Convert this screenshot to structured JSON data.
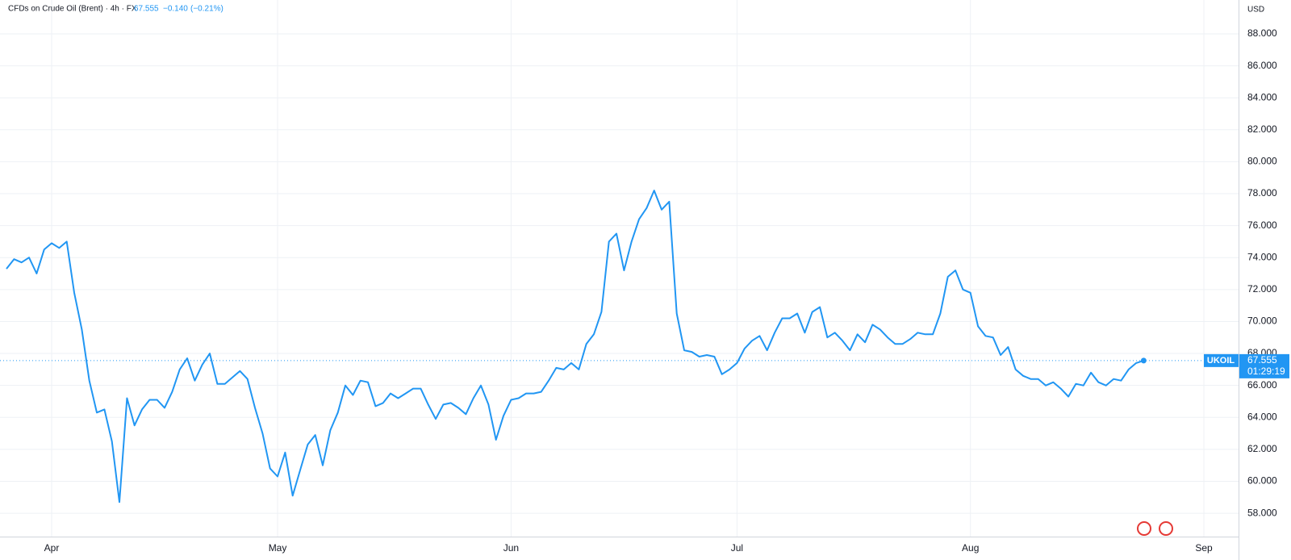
{
  "chart_data": {
    "type": "line",
    "title": "CFDs on Crude Oil (Brent) · 4h · FX",
    "quote": "67.555",
    "change": "−0.140",
    "change_pct": "(−0.21%)",
    "currency": "USD",
    "symbol": "UKOIL",
    "last_price_label": "67.555",
    "countdown": "01:29:19",
    "color": "#2196f3",
    "grid": true,
    "xlim": [
      -6.86,
      157.6
    ],
    "xticks": [
      {
        "value": 0,
        "label": "Apr"
      },
      {
        "value": 30,
        "label": "May"
      },
      {
        "value": 61,
        "label": "Jun"
      },
      {
        "value": 91,
        "label": "Jul"
      },
      {
        "value": 122,
        "label": "Aug"
      },
      {
        "value": 153,
        "label": "Sep"
      }
    ],
    "ylim": [
      56.54,
      90.12
    ],
    "yticks": [
      {
        "value": 58,
        "label": "58.000"
      },
      {
        "value": 60,
        "label": "60.000"
      },
      {
        "value": 62,
        "label": "62.000"
      },
      {
        "value": 64,
        "label": "64.000"
      },
      {
        "value": 66,
        "label": "66.000"
      },
      {
        "value": 68,
        "label": "68.000"
      },
      {
        "value": 70,
        "label": "70.000"
      },
      {
        "value": 72,
        "label": "72.000"
      },
      {
        "value": 74,
        "label": "74.000"
      },
      {
        "value": 76,
        "label": "76.000"
      },
      {
        "value": 78,
        "label": "78.000"
      },
      {
        "value": 80,
        "label": "80.000"
      },
      {
        "value": 82,
        "label": "82.000"
      },
      {
        "value": 84,
        "label": "84.000"
      },
      {
        "value": 86,
        "label": "86.000"
      },
      {
        "value": 88,
        "label": "88.000"
      }
    ],
    "x": [
      -6,
      -5,
      -4,
      -3,
      -2,
      -1,
      0,
      1,
      2,
      3,
      4,
      5,
      6,
      7,
      8,
      9,
      10,
      11,
      12,
      13,
      14,
      15,
      16,
      17,
      18,
      19,
      20,
      21,
      22,
      23,
      24,
      25,
      26,
      27,
      28,
      29,
      30,
      31,
      32,
      33,
      34,
      35,
      36,
      37,
      38,
      39,
      40,
      41,
      42,
      43,
      44,
      45,
      46,
      47,
      48,
      49,
      50,
      51,
      52,
      53,
      54,
      55,
      56,
      57,
      58,
      59,
      60,
      61,
      62,
      63,
      64,
      65,
      66,
      67,
      68,
      69,
      70,
      71,
      72,
      73,
      74,
      75,
      76,
      77,
      78,
      79,
      80,
      81,
      82,
      83,
      84,
      85,
      86,
      87,
      88,
      89,
      90,
      91,
      92,
      93,
      94,
      95,
      96,
      97,
      98,
      99,
      100,
      101,
      102,
      103,
      104,
      105,
      106,
      107,
      108,
      109,
      110,
      111,
      112,
      113,
      114,
      115,
      116,
      117,
      118,
      119,
      120,
      121,
      122,
      123,
      124,
      125,
      126,
      127,
      128,
      129,
      130,
      131,
      132,
      133,
      134,
      135,
      136,
      137,
      138,
      139,
      140,
      141,
      142,
      143,
      144,
      145
    ],
    "values": [
      73.3,
      73.9,
      73.7,
      74.0,
      73.0,
      74.5,
      74.9,
      74.6,
      75.0,
      71.8,
      69.5,
      66.3,
      64.3,
      64.5,
      62.5,
      58.7,
      65.2,
      63.5,
      64.5,
      65.1,
      65.1,
      64.6,
      65.6,
      67.0,
      67.7,
      66.3,
      67.3,
      68.0,
      66.1,
      66.1,
      66.5,
      66.9,
      66.4,
      64.6,
      63.0,
      60.8,
      60.3,
      61.8,
      59.1,
      60.7,
      62.3,
      62.9,
      61.0,
      63.2,
      64.3,
      66.0,
      65.4,
      66.3,
      66.2,
      64.7,
      64.9,
      65.5,
      65.2,
      65.5,
      65.8,
      65.8,
      64.8,
      63.9,
      64.8,
      64.9,
      64.6,
      64.2,
      65.2,
      66.0,
      64.8,
      62.6,
      64.1,
      65.1,
      65.2,
      65.5,
      65.5,
      65.6,
      66.3,
      67.1,
      67.0,
      67.4,
      67.0,
      68.6,
      69.2,
      70.6,
      75.0,
      75.5,
      73.2,
      75.0,
      76.4,
      77.1,
      78.2,
      77.0,
      77.5,
      70.5,
      68.2,
      68.1,
      67.8,
      67.9,
      67.8,
      66.7,
      67.0,
      67.4,
      68.3,
      68.8,
      69.1,
      68.2,
      69.3,
      70.2,
      70.2,
      70.5,
      69.3,
      70.6,
      70.9,
      69.0,
      69.3,
      68.8,
      68.2,
      69.2,
      68.7,
      69.8,
      69.5,
      69.0,
      68.6,
      68.6,
      68.9,
      69.3,
      69.2,
      69.2,
      70.5,
      72.8,
      73.2,
      72.0,
      71.8,
      69.7,
      69.1,
      69.0,
      67.9,
      68.4,
      67.0,
      66.6,
      66.4,
      66.4,
      66.0,
      66.2,
      65.8,
      65.3,
      66.1,
      66.0,
      66.8,
      66.2,
      66.0,
      66.4,
      66.3,
      67.0,
      67.4,
      67.555
    ]
  }
}
